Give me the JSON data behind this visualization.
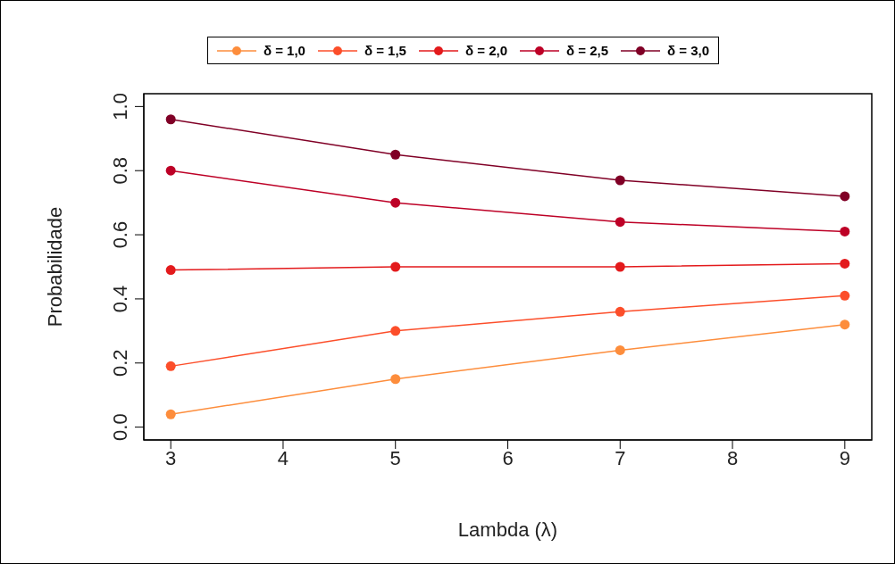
{
  "chart_data": {
    "type": "line",
    "xlabel": "Lambda (λ)",
    "ylabel": "Probabilidade",
    "x": [
      3,
      5,
      7,
      9
    ],
    "series": [
      {
        "name": "δ = 1,0",
        "color": "#fd8d3c",
        "values": [
          0.04,
          0.15,
          0.24,
          0.32
        ]
      },
      {
        "name": "δ = 1,5",
        "color": "#fc4e2a",
        "values": [
          0.19,
          0.3,
          0.36,
          0.41
        ]
      },
      {
        "name": "δ = 2,0",
        "color": "#e31a1c",
        "values": [
          0.49,
          0.5,
          0.5,
          0.51
        ]
      },
      {
        "name": "δ = 2,5",
        "color": "#bd0026",
        "values": [
          0.8,
          0.7,
          0.64,
          0.61
        ]
      },
      {
        "name": "δ = 3,0",
        "color": "#800026",
        "values": [
          0.96,
          0.85,
          0.77,
          0.72
        ]
      }
    ],
    "xlim": [
      2.76,
      9.24
    ],
    "xticks": [
      3,
      4,
      5,
      6,
      7,
      8,
      9
    ],
    "ylim": [
      -0.04,
      1.04
    ],
    "yticks": [
      {
        "value": 0,
        "label": "0.0"
      },
      {
        "value": 0.2,
        "label": "0.2"
      },
      {
        "value": 0.4,
        "label": "0.4"
      },
      {
        "value": 0.6,
        "label": "0.6"
      },
      {
        "value": 0.8,
        "label": "0.8"
      },
      {
        "value": 1,
        "label": "1.0"
      }
    ],
    "legend": "top",
    "marker": "circle",
    "line_style": "solid",
    "grid": false
  }
}
